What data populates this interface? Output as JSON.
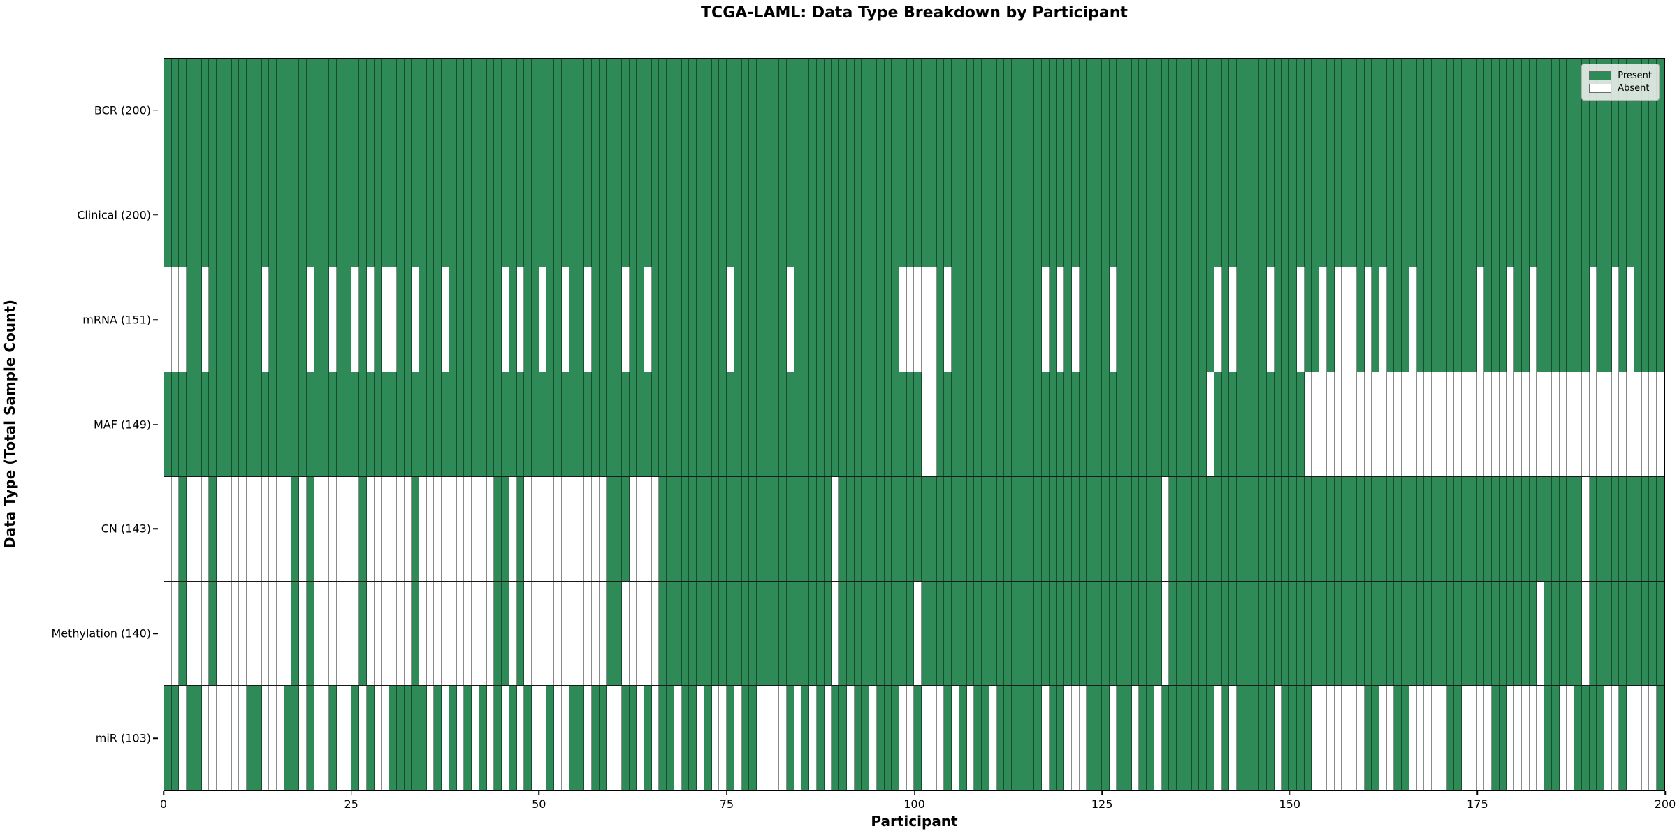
{
  "chart_data": {
    "type": "heatmap",
    "title": "TCGA-LAML: Data Type Breakdown by Participant",
    "xlabel": "Participant",
    "ylabel": "Data Type (Total Sample Count)",
    "n_participants": 200,
    "xlim": [
      0,
      200
    ],
    "x_ticks": [
      0,
      25,
      50,
      75,
      100,
      125,
      150,
      175,
      200
    ],
    "legend_position": "upper right",
    "grid": "cell borders on",
    "colors": {
      "present": "#2e8b57",
      "absent": "#ffffff",
      "grid": "#2b2b2b"
    },
    "legend": [
      {
        "label": "Present",
        "color": "#2e8b57"
      },
      {
        "label": "Absent",
        "color": "#ffffff"
      }
    ],
    "rows": [
      {
        "label": "BCR (200)",
        "total_present": 200,
        "absent": []
      },
      {
        "label": "Clinical (200)",
        "total_present": 200,
        "absent": []
      },
      {
        "label": "mRNA (151)",
        "total_present": 151,
        "absent": [
          0,
          1,
          2,
          5,
          13,
          19,
          22,
          25,
          27,
          29,
          30,
          33,
          37,
          45,
          47,
          50,
          53,
          56,
          61,
          64,
          75,
          83,
          98,
          99,
          100,
          101,
          102,
          104,
          117,
          119,
          121,
          126,
          140,
          142,
          147,
          151,
          154,
          156,
          157,
          158,
          160,
          162,
          166,
          175,
          179,
          182,
          190,
          193,
          195
        ]
      },
      {
        "label": "MAF (149)",
        "total_present": 149,
        "absent": [
          101,
          102,
          139,
          152,
          153,
          154,
          155,
          156,
          157,
          158,
          159,
          160,
          161,
          162,
          163,
          164,
          165,
          166,
          167,
          168,
          169,
          170,
          171,
          172,
          173,
          174,
          175,
          176,
          177,
          178,
          179,
          180,
          181,
          182,
          183,
          184,
          185,
          186,
          187,
          188,
          189,
          190,
          191,
          192,
          193,
          194,
          195,
          196,
          197,
          198,
          199
        ]
      },
      {
        "label": "CN (143)",
        "total_present": 143,
        "absent": [
          0,
          1,
          3,
          4,
          5,
          7,
          8,
          9,
          10,
          11,
          12,
          13,
          14,
          15,
          16,
          18,
          20,
          21,
          22,
          23,
          24,
          25,
          27,
          28,
          29,
          30,
          31,
          32,
          34,
          35,
          36,
          37,
          38,
          39,
          40,
          41,
          42,
          43,
          46,
          48,
          49,
          50,
          51,
          52,
          53,
          54,
          55,
          56,
          57,
          58,
          62,
          63,
          64,
          65,
          89,
          133,
          189
        ]
      },
      {
        "label": "Methylation (140)",
        "total_present": 140,
        "absent": [
          0,
          1,
          3,
          4,
          5,
          7,
          8,
          9,
          10,
          11,
          12,
          13,
          14,
          15,
          16,
          18,
          20,
          21,
          22,
          23,
          24,
          25,
          27,
          28,
          29,
          30,
          31,
          32,
          34,
          35,
          36,
          37,
          38,
          39,
          40,
          41,
          42,
          43,
          46,
          48,
          49,
          50,
          51,
          52,
          53,
          54,
          55,
          56,
          57,
          58,
          61,
          62,
          63,
          64,
          65,
          89,
          100,
          133,
          183,
          189
        ]
      },
      {
        "label": "miR (103)",
        "total_present": 103,
        "absent": [
          2,
          5,
          6,
          7,
          8,
          9,
          10,
          13,
          14,
          15,
          18,
          20,
          21,
          23,
          24,
          26,
          28,
          29,
          35,
          37,
          39,
          41,
          43,
          45,
          47,
          49,
          50,
          52,
          53,
          56,
          59,
          60,
          63,
          65,
          68,
          71,
          73,
          74,
          76,
          79,
          80,
          81,
          82,
          84,
          86,
          88,
          91,
          94,
          98,
          99,
          101,
          102,
          103,
          105,
          107,
          110,
          117,
          120,
          121,
          122,
          126,
          129,
          132,
          140,
          142,
          148,
          153,
          154,
          155,
          156,
          157,
          158,
          159,
          162,
          163,
          166,
          167,
          168,
          169,
          170,
          173,
          174,
          175,
          176,
          179,
          180,
          181,
          182,
          183,
          186,
          187,
          192,
          193,
          195,
          196,
          197,
          198
        ]
      }
    ]
  }
}
